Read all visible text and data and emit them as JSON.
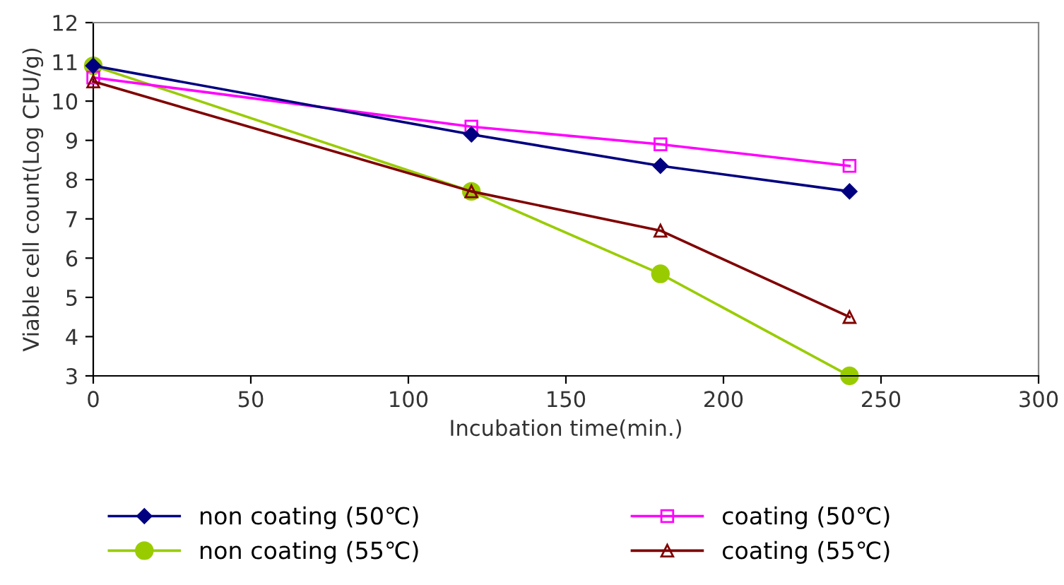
{
  "chart_data": {
    "type": "line",
    "xlabel": "Incubation time(min.)",
    "ylabel": "Viable cell count(Log CFU/g)",
    "x": [
      0,
      120,
      180,
      240
    ],
    "series": [
      {
        "name": "non coating (50℃)",
        "color": "#000080",
        "marker": "diamond",
        "values": [
          10.9,
          9.15,
          8.35,
          7.7
        ]
      },
      {
        "name": "coating (50℃)",
        "color": "#ff00ff",
        "marker": "square",
        "values": [
          10.6,
          9.35,
          8.9,
          8.35
        ]
      },
      {
        "name": "non coating (55℃)",
        "color": "#99cc00",
        "marker": "circle",
        "values": [
          10.9,
          7.7,
          5.6,
          3.0
        ]
      },
      {
        "name": "coating (55℃)",
        "color": "#800000",
        "marker": "triangle",
        "values": [
          10.5,
          7.7,
          6.7,
          4.5
        ]
      }
    ],
    "xlim": [
      0,
      300
    ],
    "xticks": [
      0,
      50,
      100,
      150,
      200,
      250,
      300
    ],
    "ylim": [
      3,
      12
    ],
    "yticks": [
      3,
      4,
      5,
      6,
      7,
      8,
      9,
      10,
      11,
      12
    ],
    "grid": false,
    "legend": "bottom"
  }
}
